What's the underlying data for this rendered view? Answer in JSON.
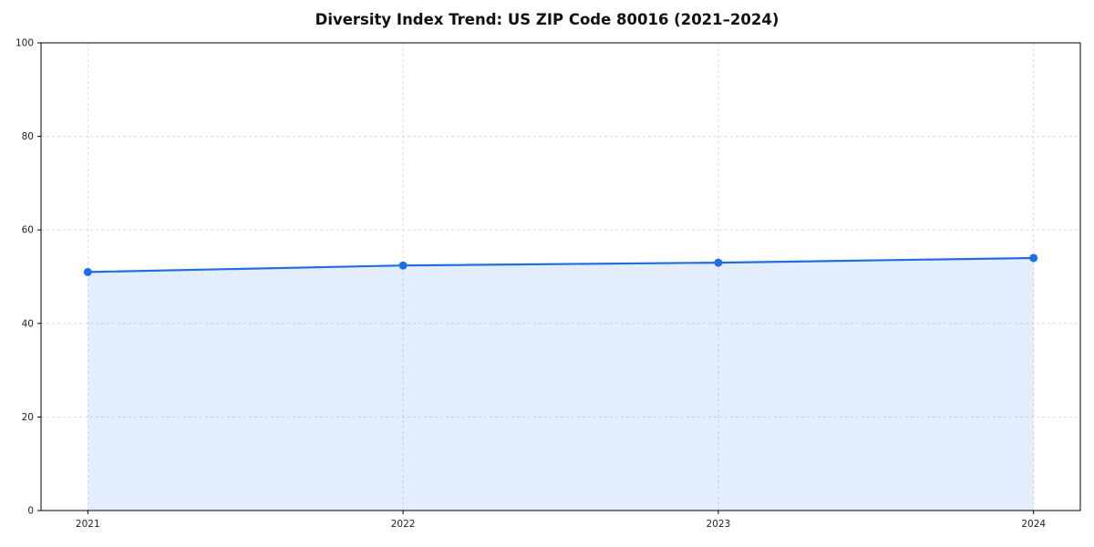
{
  "chart_data": {
    "type": "area",
    "title": "Diversity Index Trend: US ZIP Code 80016 (2021–2024)",
    "x": [
      "2021",
      "2022",
      "2023",
      "2024"
    ],
    "series": [
      {
        "name": "Diversity Index",
        "values": [
          51,
          52.4,
          53,
          54
        ]
      }
    ],
    "xlabel": "",
    "ylabel": "",
    "ylim": [
      0,
      100
    ],
    "yticks": [
      0,
      20,
      40,
      60,
      80,
      100
    ],
    "grid": true,
    "grid_style": "dashed",
    "legend": "none",
    "line_color": "#1f6fe1",
    "marker_color": "#1f6fe1",
    "fill_color": "rgba(31,111,225,0.12)",
    "grid_color": "#dcdcdc",
    "spine_color": "#000000",
    "tick_label_color": "#222222"
  }
}
